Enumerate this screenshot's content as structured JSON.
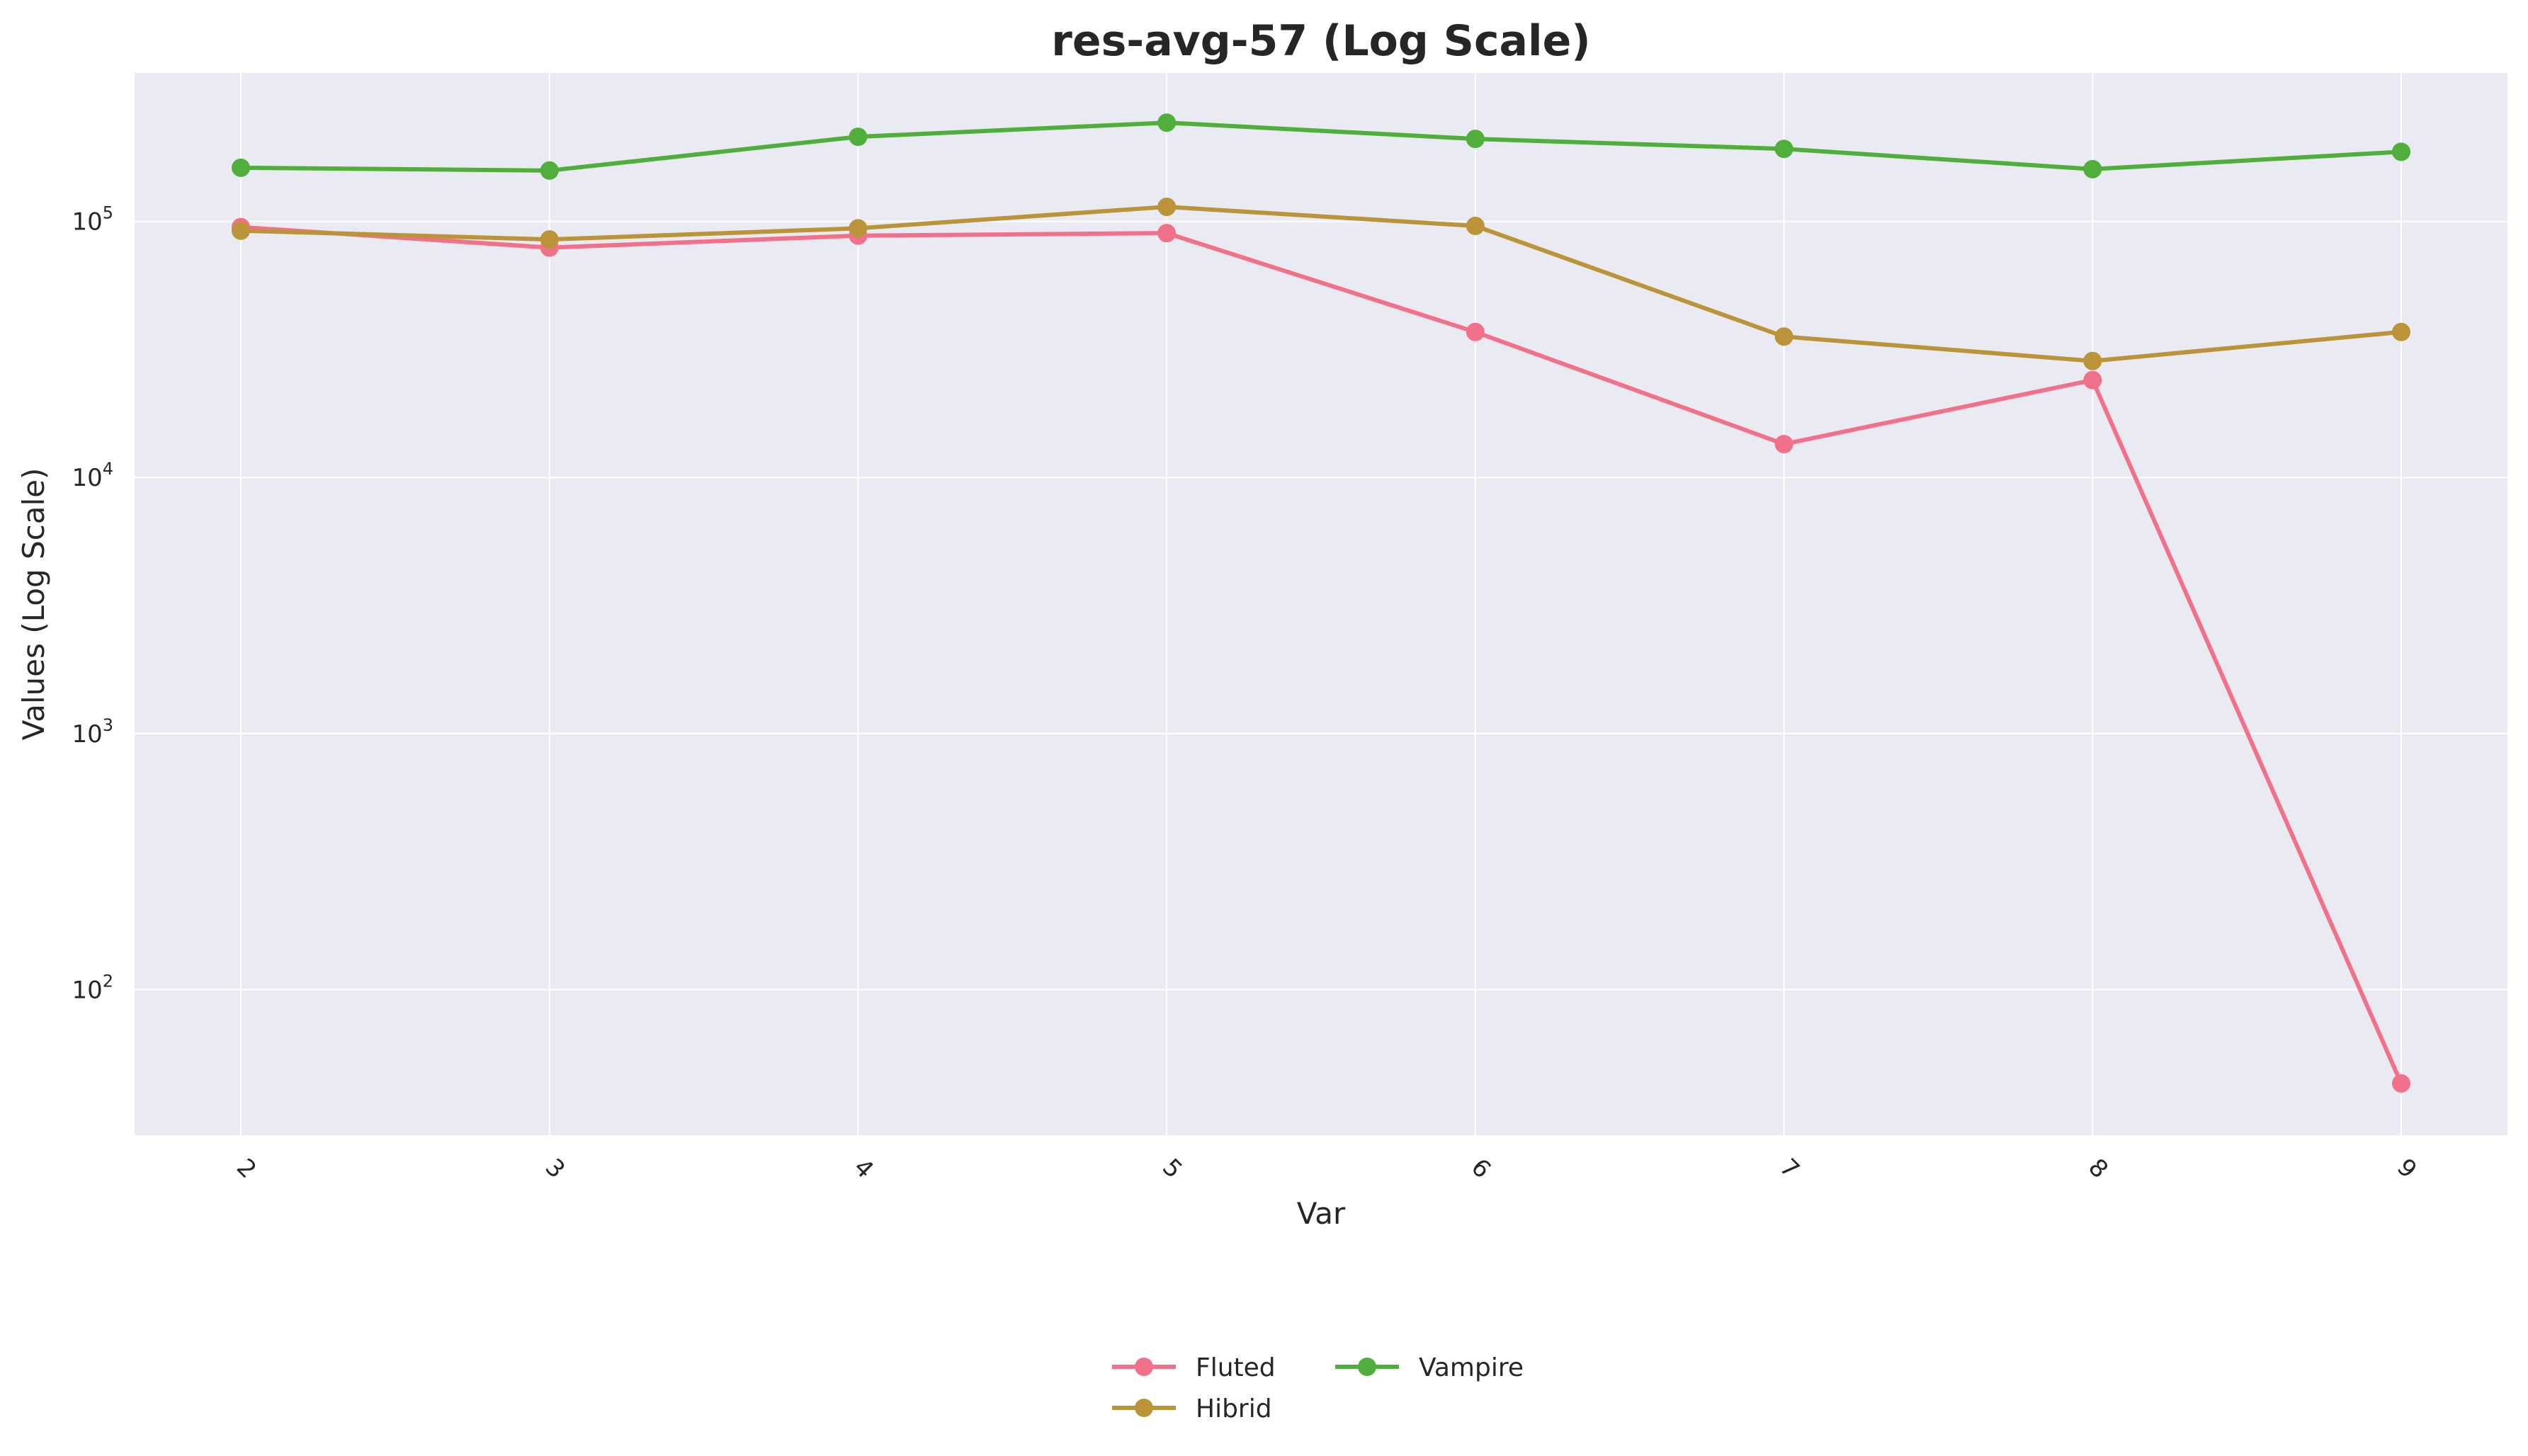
{
  "chart_data": {
    "type": "line",
    "title": "res-avg-57 (Log Scale)",
    "xlabel": "Var",
    "ylabel": "Values (Log Scale)",
    "x": [
      "2",
      "3",
      "4",
      "5",
      "6",
      "7",
      "8",
      "9"
    ],
    "y_scale": "log",
    "ylim": [
      27,
      380000
    ],
    "y_ticks": [
      {
        "value": 100,
        "base": "10",
        "exp": "2"
      },
      {
        "value": 1000,
        "base": "10",
        "exp": "3"
      },
      {
        "value": 10000,
        "base": "10",
        "exp": "4"
      },
      {
        "value": 100000,
        "base": "10",
        "exp": "5"
      }
    ],
    "grid": true,
    "x_tick_rotation": 45,
    "legend": {
      "position": "bottom-center",
      "columns": 2
    },
    "background": "#eaeaf2",
    "series": [
      {
        "name": "Fluted",
        "color": "#f2718a",
        "values": [
          95000,
          79000,
          88000,
          90000,
          37000,
          13500,
          24000,
          43
        ]
      },
      {
        "name": "Hibrid",
        "color": "#bb9439",
        "values": [
          92000,
          85000,
          94000,
          114000,
          96000,
          35500,
          28500,
          37000
        ]
      },
      {
        "name": "Vampire",
        "color": "#4faf3a",
        "values": [
          162000,
          158000,
          214000,
          243000,
          210000,
          192000,
          160000,
          187000
        ]
      }
    ]
  }
}
